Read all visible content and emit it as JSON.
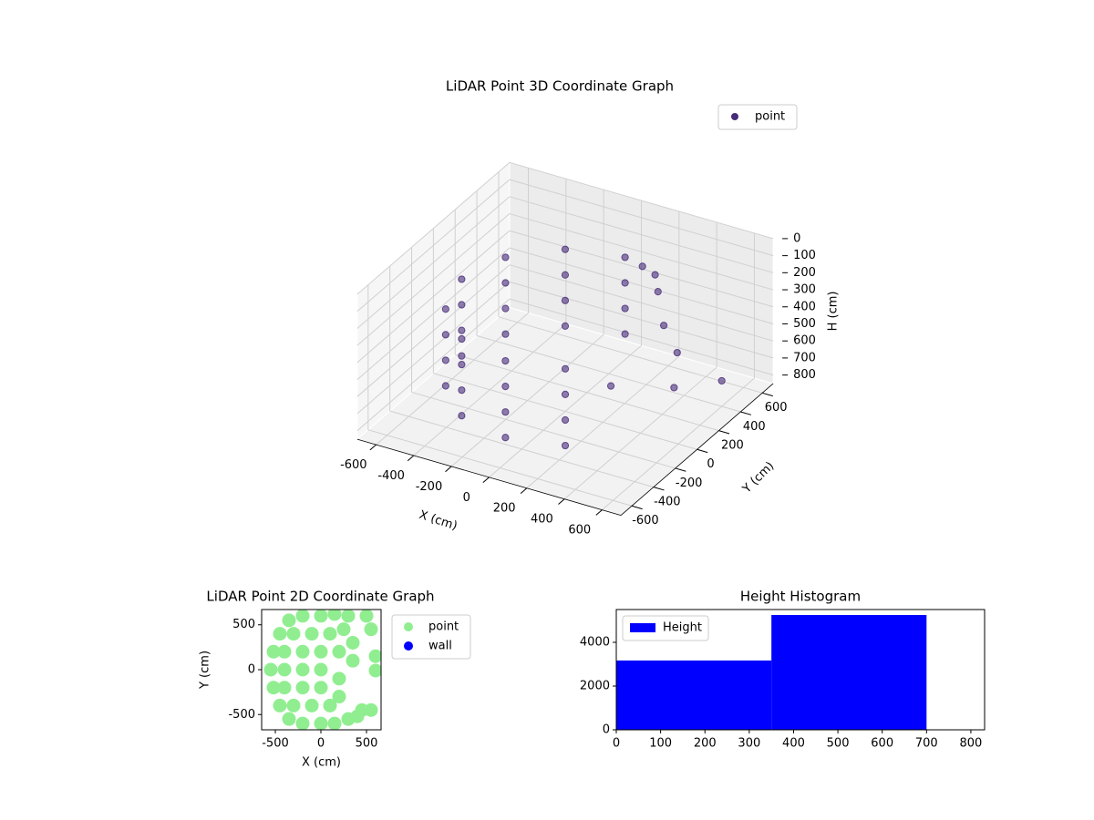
{
  "chart_data": [
    {
      "type": "scatter3d",
      "title": "LiDAR Point 3D Coordinate Graph",
      "xlabel": "X (cm)",
      "ylabel": "Y (cm)",
      "zlabel": "H (cm)",
      "xlim": [
        -700,
        700
      ],
      "ylim": [
        -700,
        700
      ],
      "zlim": [
        0,
        850
      ],
      "z_inverted": true,
      "xticks": [
        -600,
        -400,
        -200,
        0,
        200,
        400,
        600
      ],
      "yticks": [
        -600,
        -400,
        -200,
        0,
        200,
        400,
        600
      ],
      "zticks": [
        0,
        100,
        200,
        300,
        400,
        500,
        600,
        700,
        800
      ],
      "grid": true,
      "legend": "upper right",
      "series": [
        {
          "name": "point",
          "color": "#472c7a",
          "x": [
            0,
            -275,
            -476,
            -550,
            -476,
            -275,
            0,
            275,
            0,
            -275,
            -476,
            -550,
            -476,
            -275,
            0,
            275,
            0,
            -275,
            -476,
            -550,
            -476,
            -275,
            0,
            275,
            0,
            -275,
            -476,
            -550,
            -476,
            -275,
            0,
            275,
            150,
            200,
            250,
            350,
            450,
            520,
            600,
            300
          ],
          "y": [
            550,
            476,
            275,
            0,
            -275,
            -476,
            -550,
            -476,
            550,
            476,
            275,
            0,
            -275,
            -476,
            -550,
            -476,
            550,
            476,
            275,
            0,
            -275,
            -476,
            -550,
            -476,
            550,
            476,
            275,
            0,
            -275,
            -476,
            -550,
            -476,
            450,
            480,
            420,
            300,
            250,
            100,
            400,
            -100
          ],
          "z": [
            250,
            250,
            250,
            250,
            250,
            250,
            250,
            250,
            400,
            400,
            400,
            400,
            400,
            400,
            400,
            400,
            550,
            550,
            550,
            550,
            550,
            550,
            550,
            550,
            700,
            700,
            700,
            700,
            700,
            700,
            700,
            700,
            200,
            250,
            300,
            400,
            500,
            600,
            700,
            550
          ]
        }
      ]
    },
    {
      "type": "scatter",
      "title": "LiDAR Point 2D Coordinate Graph",
      "xlabel": "X (cm)",
      "ylabel": "Y (cm)",
      "xlim": [
        -650,
        660
      ],
      "ylim": [
        -670,
        670
      ],
      "xticks": [
        -500,
        0,
        500
      ],
      "yticks": [
        -500,
        0,
        500
      ],
      "legend": "outside upper right",
      "series": [
        {
          "name": "point",
          "color": "#90ee90",
          "x": [
            -550,
            -520,
            -520,
            -450,
            -450,
            -350,
            -350,
            -200,
            -200,
            0,
            0,
            150,
            150,
            300,
            300,
            -400,
            -400,
            -400,
            -300,
            -300,
            -200,
            -200,
            -200,
            -100,
            -100,
            0,
            0,
            0,
            100,
            100,
            200,
            200,
            200,
            250,
            350,
            350,
            500,
            550,
            600,
            450,
            550,
            600,
            400
          ],
          "y": [
            0,
            -200,
            200,
            -400,
            400,
            -550,
            550,
            -600,
            600,
            -600,
            600,
            -600,
            620,
            -550,
            600,
            0,
            -200,
            200,
            -400,
            400,
            0,
            -200,
            200,
            -400,
            400,
            0,
            -200,
            200,
            -400,
            400,
            -100,
            -300,
            200,
            450,
            300,
            100,
            600,
            450,
            150,
            -450,
            -450,
            -10,
            -520
          ]
        },
        {
          "name": "wall",
          "color": "#0000ff",
          "x": [],
          "y": []
        }
      ]
    },
    {
      "type": "histogram",
      "title": "Height Histogram",
      "label": "Height",
      "color": "#0000ff",
      "bins": [
        0,
        350,
        700
      ],
      "counts": [
        3170,
        5250
      ],
      "xlim": [
        0,
        831
      ],
      "ylim": [
        0,
        5500
      ],
      "xticks": [
        0,
        100,
        200,
        300,
        400,
        500,
        600,
        700,
        800
      ],
      "yticks": [
        0,
        2000,
        4000
      ],
      "legend": "upper left"
    }
  ]
}
